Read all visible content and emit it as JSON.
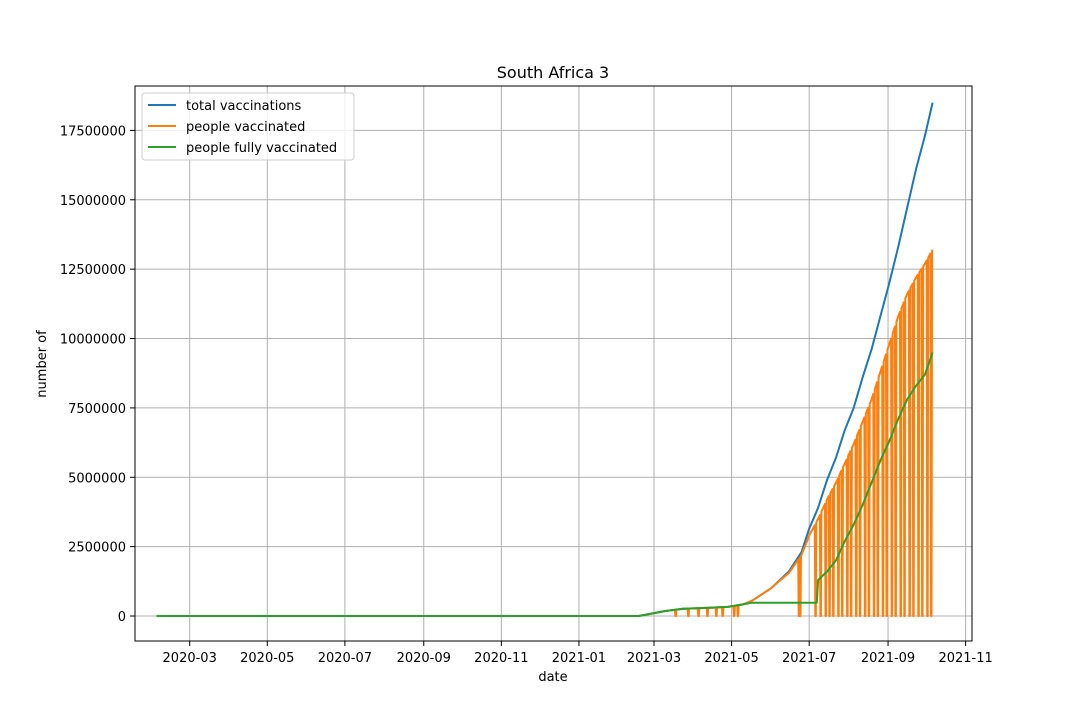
{
  "chart_data": {
    "type": "line",
    "title": "South Africa 3",
    "xlabel": "date",
    "ylabel": "number of",
    "grid": true,
    "legend_position": "top-left",
    "x_type": "date",
    "xlim": [
      "2020-01-18",
      "2021-11-06"
    ],
    "ylim": [
      -900000,
      19100000
    ],
    "x_ticks": [
      "2020-03",
      "2020-05",
      "2020-07",
      "2020-09",
      "2020-11",
      "2021-01",
      "2021-03",
      "2021-05",
      "2021-07",
      "2021-09",
      "2021-11"
    ],
    "y_ticks": [
      0,
      2500000,
      5000000,
      7500000,
      10000000,
      12500000,
      15000000,
      17500000
    ],
    "y_tick_labels": [
      "0",
      "2500000",
      "5000000",
      "7500000",
      "10000000",
      "12500000",
      "15000000",
      "17500000"
    ],
    "series": [
      {
        "name": "total vaccinations",
        "color": "#1f77b4",
        "x": [
          "2020-02-04",
          "2021-02-17",
          "2021-02-24",
          "2021-03-10",
          "2021-03-24",
          "2021-04-14",
          "2021-04-28",
          "2021-05-10",
          "2021-05-17",
          "2021-06-01",
          "2021-06-15",
          "2021-06-25",
          "2021-07-01",
          "2021-07-08",
          "2021-07-15",
          "2021-07-22",
          "2021-07-29",
          "2021-08-05",
          "2021-08-12",
          "2021-08-19",
          "2021-08-26",
          "2021-09-02",
          "2021-09-09",
          "2021-09-16",
          "2021-09-23",
          "2021-09-30",
          "2021-10-06"
        ],
        "y": [
          0,
          0,
          60000,
          180000,
          260000,
          300000,
          330000,
          420000,
          550000,
          1000000,
          1600000,
          2300000,
          3150000,
          3900000,
          4900000,
          5700000,
          6700000,
          7500000,
          8600000,
          9600000,
          10800000,
          12000000,
          13300000,
          14700000,
          16100000,
          17300000,
          18500000
        ]
      },
      {
        "name": "people vaccinated",
        "color": "#ff7f0e",
        "x": [
          "2020-02-04",
          "2021-02-17",
          "2021-02-24",
          "2021-03-10",
          "2021-03-24",
          "2021-04-14",
          "2021-04-28",
          "2021-05-10",
          "2021-05-17",
          "2021-06-01",
          "2021-06-15",
          "2021-06-25",
          "2021-07-01",
          "2021-07-08",
          "2021-07-15",
          "2021-07-22",
          "2021-07-29",
          "2021-08-05",
          "2021-08-12",
          "2021-08-19",
          "2021-08-26",
          "2021-09-02",
          "2021-09-09",
          "2021-09-16",
          "2021-09-23",
          "2021-09-30",
          "2021-10-06"
        ],
        "y": [
          0,
          0,
          60000,
          180000,
          260000,
          300000,
          330000,
          420000,
          550000,
          1000000,
          1550000,
          2200000,
          2900000,
          3500000,
          4200000,
          4800000,
          5500000,
          6200000,
          7000000,
          7800000,
          8800000,
          9800000,
          10800000,
          11600000,
          12200000,
          12700000,
          13200000
        ],
        "zero_dips": [
          "2021-03-18",
          "2021-03-28",
          "2021-04-05",
          "2021-04-12",
          "2021-04-19",
          "2021-04-24",
          "2021-05-03",
          "2021-05-06",
          "2021-06-23",
          "2021-06-24",
          "2021-07-06",
          "2021-07-10",
          "2021-07-14",
          "2021-07-17",
          "2021-07-20",
          "2021-07-24",
          "2021-07-27",
          "2021-07-31",
          "2021-08-03",
          "2021-08-07",
          "2021-08-10",
          "2021-08-14",
          "2021-08-17",
          "2021-08-21",
          "2021-08-24",
          "2021-08-28",
          "2021-08-31",
          "2021-09-04",
          "2021-09-07",
          "2021-09-11",
          "2021-09-14",
          "2021-09-18",
          "2021-09-21",
          "2021-09-25",
          "2021-09-28",
          "2021-10-02",
          "2021-10-05"
        ]
      },
      {
        "name": "people fully vaccinated",
        "color": "#2ca02c",
        "x": [
          "2020-02-04",
          "2021-02-17",
          "2021-02-24",
          "2021-03-10",
          "2021-03-24",
          "2021-04-14",
          "2021-04-28",
          "2021-05-10",
          "2021-05-17",
          "2021-06-15",
          "2021-07-07",
          "2021-07-08",
          "2021-07-15",
          "2021-07-22",
          "2021-07-29",
          "2021-08-05",
          "2021-08-12",
          "2021-08-19",
          "2021-08-26",
          "2021-09-02",
          "2021-09-09",
          "2021-09-16",
          "2021-09-23",
          "2021-09-30",
          "2021-10-06"
        ],
        "y": [
          0,
          0,
          60000,
          180000,
          260000,
          300000,
          330000,
          420000,
          480000,
          480000,
          480000,
          1300000,
          1600000,
          2000000,
          2700000,
          3300000,
          4000000,
          4800000,
          5600000,
          6300000,
          7100000,
          7800000,
          8300000,
          8700000,
          9500000
        ]
      }
    ]
  }
}
